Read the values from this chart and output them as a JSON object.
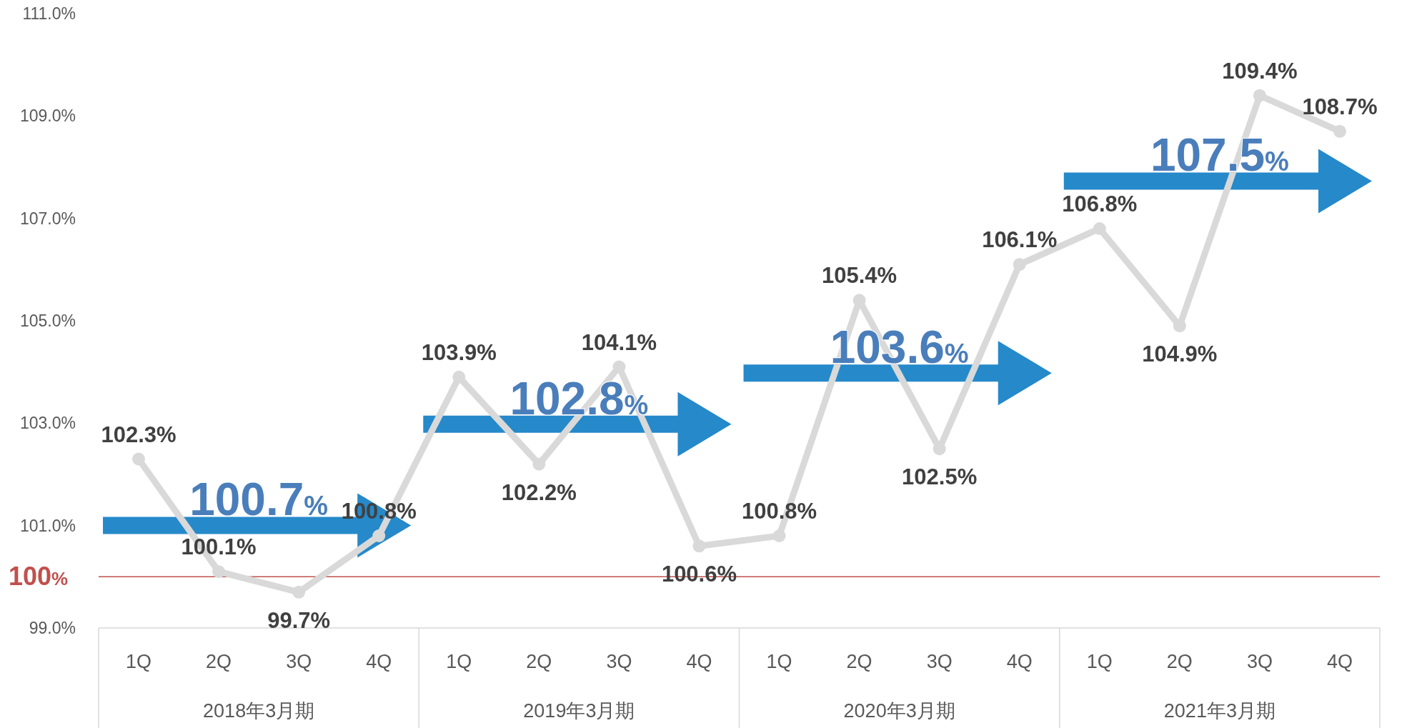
{
  "chart_data": {
    "type": "line",
    "categories": [
      "1Q",
      "2Q",
      "3Q",
      "4Q",
      "1Q",
      "2Q",
      "3Q",
      "4Q",
      "1Q",
      "2Q",
      "3Q",
      "4Q",
      "1Q",
      "2Q",
      "3Q",
      "4Q"
    ],
    "series": [
      {
        "color": "#d9d9d9",
        "values": [
          102.3,
          100.1,
          99.7,
          100.8,
          103.9,
          102.2,
          104.1,
          100.6,
          100.8,
          105.4,
          102.5,
          106.1,
          106.8,
          104.9,
          109.4,
          108.7
        ],
        "value_labels": [
          "102.3%",
          "100.1%",
          "99.7%",
          "100.8%",
          "103.9%",
          "102.2%",
          "104.1%",
          "100.6%",
          "100.8%",
          "105.4%",
          "102.5%",
          "106.1%",
          "106.8%",
          "104.9%",
          "109.4%",
          "108.7%"
        ]
      }
    ],
    "marker": "circle",
    "line_style": "solid",
    "ylim": [
      99,
      111
    ],
    "yticks": [
      {
        "value": 99,
        "label": "99.0%"
      },
      {
        "value": 101,
        "label": "101.0%"
      },
      {
        "value": 103,
        "label": "103.0%"
      },
      {
        "value": 105,
        "label": "105.0%"
      },
      {
        "value": 107,
        "label": "107.0%"
      },
      {
        "value": 109,
        "label": "109.0%"
      },
      {
        "value": 111,
        "label": "111.0%"
      }
    ],
    "grid": false,
    "ref_lines": [
      {
        "axis": "y",
        "value": 100,
        "label": "100%",
        "color": "#c0504d"
      }
    ],
    "annotations": [
      "100.7%",
      "102.8%",
      "103.6%",
      "107.5%",
      "2018年3月期",
      "2019年3月期",
      "2020年3月期",
      "2021年3月期"
    ]
  }
}
